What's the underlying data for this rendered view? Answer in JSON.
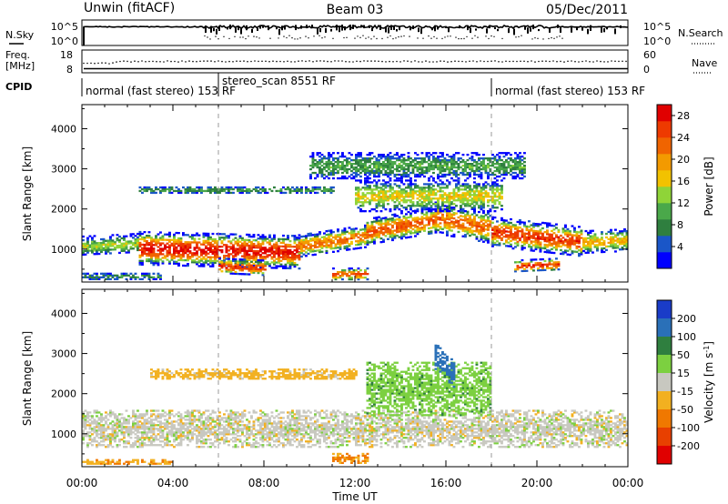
{
  "header": {
    "station": "Unwin (fitACF)",
    "beam": "Beam 03",
    "date": "05/Dec/2011"
  },
  "noise_panel": {
    "left_label": "N.Sky",
    "right_label": "N.Search",
    "left_ticks": [
      "10^5",
      "10^0"
    ],
    "right_ticks": [
      "10^5",
      "10^0"
    ]
  },
  "freq_panel": {
    "left_label_1": "Freq.",
    "left_label_2": "[MHz]",
    "right_label": "Nave",
    "left_ticks": [
      "18",
      "8"
    ],
    "right_ticks": [
      "60",
      "0"
    ]
  },
  "cpid_panel": {
    "label": "CPID",
    "segments": [
      {
        "text": "normal (fast stereo) 153 RF",
        "start_hour": 0,
        "end_hour": 6
      },
      {
        "text": "stereo_scan 8551 RF",
        "start_hour": 6,
        "end_hour": 18
      },
      {
        "text": "normal (fast stereo) 153 RF",
        "start_hour": 18,
        "end_hour": 24
      }
    ]
  },
  "x_axis": {
    "label": "Time UT",
    "ticks": [
      "00:00",
      "04:00",
      "08:00",
      "12:00",
      "16:00",
      "20:00",
      "00:00"
    ],
    "range_hours": [
      0,
      24
    ]
  },
  "y_axis": {
    "label": "Slant Range [km]",
    "ticks": [
      "1000",
      "2000",
      "3000",
      "4000"
    ],
    "range_km": [
      180,
      4600
    ]
  },
  "power_colorbar": {
    "label": "Power [dB]",
    "ticks": [
      "4",
      "8",
      "12",
      "16",
      "20",
      "24",
      "28"
    ],
    "colors": [
      "#0000ff",
      "#1a56c8",
      "#2f7f3f",
      "#4aa84a",
      "#8fd438",
      "#f2c200",
      "#f39a00",
      "#f06400",
      "#ee3a00",
      "#e00000"
    ]
  },
  "velocity_colorbar": {
    "label_main": "Velocity [m s",
    "label_exp": "-1",
    "label_end": "]",
    "ticks": [
      "200",
      "100",
      "50",
      "15",
      "-15",
      "-50",
      "-100",
      "-200"
    ],
    "colors": [
      "#1a3cc8",
      "#2a70b8",
      "#2f7f3f",
      "#7cd040",
      "#c8c8c0",
      "#f2b020",
      "#f07800",
      "#e84000",
      "#e00000"
    ]
  },
  "chart_data": {
    "type": "heatmap",
    "title": "Unwin (fitACF) Beam 03 05/Dec/2011",
    "xlabel": "Time UT",
    "ylabel": "Slant Range [km]",
    "xlim_hours": [
      0,
      24
    ],
    "ylim_km": [
      180,
      4600
    ],
    "power_scale_db": [
      0,
      30
    ],
    "velocity_scale_ms": [
      -200,
      200
    ],
    "power_bands": [
      {
        "start_h": 0.0,
        "end_h": 2.5,
        "center_km": [
          1050,
          1120
        ],
        "half_width_km": 180,
        "peak_db": 14
      },
      {
        "start_h": 2.5,
        "end_h": 9.5,
        "center_km": [
          1000,
          900
        ],
        "half_width_km": 320,
        "peak_db": 28
      },
      {
        "start_h": 9.5,
        "end_h": 12.5,
        "center_km": [
          1050,
          1300
        ],
        "half_width_km": 220,
        "peak_db": 22
      },
      {
        "start_h": 12.5,
        "end_h": 15.5,
        "center_km": [
          1400,
          1700
        ],
        "half_width_km": 250,
        "peak_db": 24
      },
      {
        "start_h": 15.5,
        "end_h": 18.0,
        "center_km": [
          1750,
          1500
        ],
        "half_width_km": 300,
        "peak_db": 23
      },
      {
        "start_h": 18.0,
        "end_h": 22.0,
        "center_km": [
          1400,
          1150
        ],
        "half_width_km": 280,
        "peak_db": 26
      },
      {
        "start_h": 22.0,
        "end_h": 24.0,
        "center_km": [
          1150,
          1200
        ],
        "half_width_km": 220,
        "peak_db": 18
      },
      {
        "start_h": 2.5,
        "end_h": 11.0,
        "center_km": [
          2450,
          2450
        ],
        "half_width_km": 80,
        "peak_db": 9
      },
      {
        "start_h": 10.0,
        "end_h": 19.5,
        "center_km": [
          3050,
          3050
        ],
        "half_width_km": 250,
        "peak_db": 10
      },
      {
        "start_h": 12.0,
        "end_h": 18.5,
        "center_km": [
          2300,
          2300
        ],
        "half_width_km": 300,
        "peak_db": 16
      },
      {
        "start_h": 6.0,
        "end_h": 8.0,
        "center_km": [
          550,
          500
        ],
        "half_width_km": 150,
        "peak_db": 26
      },
      {
        "start_h": 11.0,
        "end_h": 12.5,
        "center_km": [
          350,
          350
        ],
        "half_width_km": 120,
        "peak_db": 24
      },
      {
        "start_h": 19.0,
        "end_h": 21.0,
        "center_km": [
          550,
          600
        ],
        "half_width_km": 120,
        "peak_db": 26
      },
      {
        "start_h": 0.0,
        "end_h": 3.5,
        "center_km": [
          300,
          300
        ],
        "half_width_km": 80,
        "peak_db": 8
      }
    ],
    "velocity_bands": [
      {
        "start_h": 0.0,
        "end_h": 24.0,
        "center_km": [
          1100,
          1100
        ],
        "half_width_km": 350,
        "velocity_ms": 0
      },
      {
        "start_h": 12.5,
        "end_h": 18.0,
        "center_km": [
          2100,
          2100
        ],
        "half_width_km": 500,
        "velocity_ms": 35
      },
      {
        "start_h": 15.5,
        "end_h": 16.4,
        "center_km": [
          2900,
          2400
        ],
        "half_width_km": 250,
        "velocity_ms": 180
      },
      {
        "start_h": 0.0,
        "end_h": 4.0,
        "center_km": [
          260,
          260
        ],
        "half_width_km": 50,
        "velocity_ms": -40
      },
      {
        "start_h": 11.0,
        "end_h": 12.5,
        "center_km": [
          350,
          350
        ],
        "half_width_km": 100,
        "velocity_ms": -60
      },
      {
        "start_h": 3.0,
        "end_h": 12.0,
        "center_km": [
          2450,
          2450
        ],
        "half_width_km": 100,
        "velocity_ms": -30
      }
    ]
  }
}
